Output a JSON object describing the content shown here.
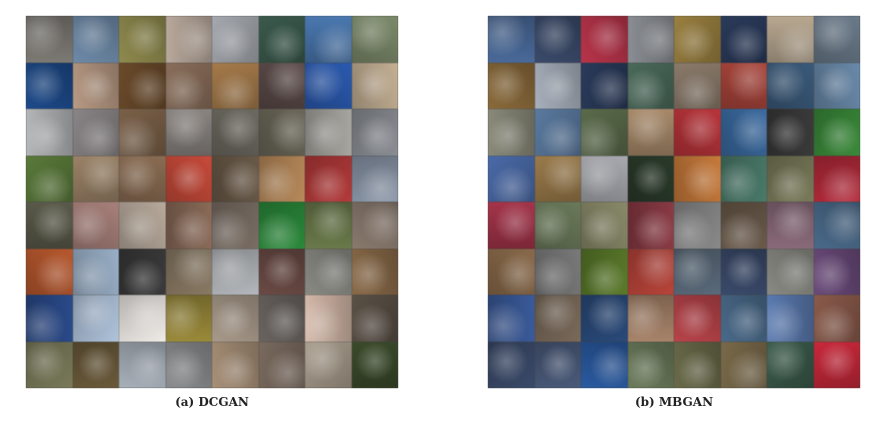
{
  "panels": [
    {
      "caption": "(a) DCGAN",
      "tiles": [
        [
          "#7d7a74",
          "#6e8aa8",
          "#8f8a4e",
          "#b9a99c",
          "#a6aab0",
          "#3a5a4c",
          "#4a78b0",
          "#7c8a6a"
        ],
        [
          "#1d4a8a",
          "#b89a84",
          "#6a4a2a",
          "#8a6e5a",
          "#a57a4a",
          "#5a4a48",
          "#2a5ab0",
          "#c4b094"
        ],
        [
          "#b4b6b8",
          "#8a8688",
          "#7a6048",
          "#8a8480",
          "#6c6a60",
          "#6a6658",
          "#a8a6a0",
          "#8a8e94"
        ],
        [
          "#5a7a3a",
          "#9a8266",
          "#8a6c52",
          "#c84a3a",
          "#6a5a48",
          "#b88a5a",
          "#b43a3a",
          "#8a96a8"
        ],
        [
          "#5a5a4a",
          "#a8807a",
          "#b8aa9c",
          "#8a6a58",
          "#7a6e64",
          "#2a8a3a",
          "#6a7a4a",
          "#8a7a6e"
        ],
        [
          "#b8582e",
          "#9ab0c8",
          "#3a3a3a",
          "#8a7a64",
          "#b4b8bc",
          "#6a4a44",
          "#8a8a84",
          "#8a6a48"
        ],
        [
          "#2a4a8a",
          "#b0c4dc",
          "#f0ece8",
          "#9a8a3a",
          "#a89a8a",
          "#6a6460",
          "#d4b8a8",
          "#5a5046"
        ],
        [
          "#7a7a5a",
          "#6a5a3a",
          "#a8b0ba",
          "#8a8c8e",
          "#a89078",
          "#7a6a5e",
          "#a89c8c",
          "#3a4a2a"
        ]
      ]
    },
    {
      "caption": "(b) MBGAN",
      "tiles": [
        [
          "#4a6a9a",
          "#3a4a6a",
          "#b8344a",
          "#8a8e94",
          "#9a8040",
          "#2a3a5a",
          "#b8a890",
          "#6a7a8a"
        ],
        [
          "#8a6a3a",
          "#a8b0bc",
          "#2a3a5a",
          "#4a6a5a",
          "#8a7a6a",
          "#a8443a",
          "#3a5a7a",
          "#6a8aaa"
        ],
        [
          "#8a8a7a",
          "#5a7aa0",
          "#5a6a4a",
          "#a88a6a",
          "#b8343a",
          "#3a6aa0",
          "#3a3a3a",
          "#3a8a3a"
        ],
        [
          "#4a6aa8",
          "#9a7a4a",
          "#a8aab0",
          "#2a3a2a",
          "#c87a3a",
          "#4a7a6a",
          "#7a7a5a",
          "#b42a3a"
        ],
        [
          "#a4344a",
          "#6a7a5a",
          "#8a8a6a",
          "#8a3a44",
          "#8a8a8a",
          "#6a5a4a",
          "#8a6a7a",
          "#4a6a8a"
        ],
        [
          "#8a6a4a",
          "#7a7a7a",
          "#5a7a2a",
          "#b8443a",
          "#5a6a7a",
          "#3a4a6a",
          "#8a8a84",
          "#6a4a7a"
        ],
        [
          "#3a5a9a",
          "#7a6a5a",
          "#2a4a7a",
          "#a8846a",
          "#b8444a",
          "#4a6a8a",
          "#5a7ab0",
          "#8a5a4a"
        ],
        [
          "#3a4a6a",
          "#4a5a7a",
          "#2a5aa0",
          "#6a7a5a",
          "#6a6a4a",
          "#7a6a4a",
          "#3a5a4a",
          "#c8283a"
        ]
      ]
    }
  ]
}
